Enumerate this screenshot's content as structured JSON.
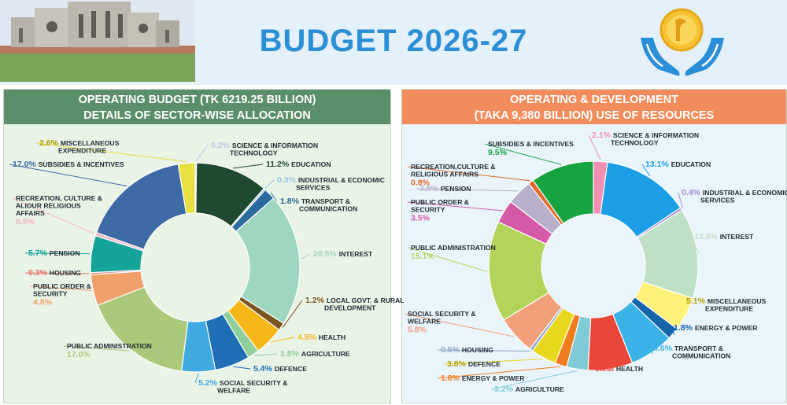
{
  "header": {
    "title": "BUDGET 2026-27"
  },
  "colors": {
    "header_bg": "#e4f0fa",
    "title": "#2b8fd6",
    "left_banner": "#5a8f6a",
    "right_banner": "#f28c5c"
  },
  "chart_data": [
    {
      "type": "pie",
      "donut": true,
      "title": "OPERATING BUDGET (TK 6219.25 BILLION)",
      "subtitle": "DETAILS OF SECTOR-WISE ALLOCATION",
      "unit": "%",
      "slices": [
        {
          "label": "SCIENCE & INFORMATION TECHNOLOGY",
          "value": 0.2,
          "text": "0.2%",
          "color": "#b9c9e6"
        },
        {
          "label": "EDUCATION",
          "value": 11.2,
          "text": "11.2%",
          "color": "#1f4a2f"
        },
        {
          "label": "INDUSTRIAL & ECONOMIC SERVICES",
          "value": 0.3,
          "text": "0.3%",
          "color": "#9ec3e0"
        },
        {
          "label": "TRANSPORT & COMMUNICATION",
          "value": 1.8,
          "text": "1.8%",
          "color": "#2a6a9c"
        },
        {
          "label": "INTEREST",
          "value": 20.5,
          "text": "20.5%",
          "color": "#9fd6c0"
        },
        {
          "label": "LOCAL GOVT. & RURAL DEVELOPMENT",
          "value": 1.2,
          "text": "1.2%",
          "color": "#7a5520"
        },
        {
          "label": "HEALTH",
          "value": 4.5,
          "text": "4.5%",
          "color": "#f5b719"
        },
        {
          "label": "AGRICULTURE",
          "value": 1.8,
          "text": "1.8%",
          "color": "#8fcf9a"
        },
        {
          "label": "DEFENCE",
          "value": 5.4,
          "text": "5.4%",
          "color": "#1e6fb5"
        },
        {
          "label": "SOCIAL SECURITY & WELFARE",
          "value": 5.2,
          "text": "5.2%",
          "color": "#3fa9e0"
        },
        {
          "label": "PUBLIC ADMINISTRATION",
          "value": 17.0,
          "text": "17.0%",
          "color": "#aac97a"
        },
        {
          "label": "PUBLIC ORDER & SECURITY",
          "value": 4.8,
          "text": "4.8%",
          "color": "#f2a06b"
        },
        {
          "label": "HOUSING",
          "value": 0.3,
          "text": "0.3%",
          "color": "#e8746a"
        },
        {
          "label": "PENSION",
          "value": 5.7,
          "text": "5.7%",
          "color": "#16a39a"
        },
        {
          "label": "RECREATION, CULTURE & ALIOUR RELIGIOUS AFFAIRS",
          "value": 0.5,
          "text": "0.5%",
          "color": "#f4b6c0"
        },
        {
          "label": "SUBSIDIES & INCENTIVES",
          "value": 17.0,
          "text": "17.0%",
          "color": "#3e6aa6"
        },
        {
          "label": "MISCELLANEOUS EXPENDITURE",
          "value": 2.6,
          "text": "2.6%",
          "color": "#e8e040"
        }
      ]
    },
    {
      "type": "pie",
      "donut": true,
      "title": "OPERATING & DEVELOPMENT",
      "subtitle": "(TAKA 9,380 BILLION) USE OF RESOURCES",
      "unit": "%",
      "slices": [
        {
          "label": "SCIENCE & INFORMATION TECHNOLOGY",
          "value": 2.1,
          "text": "2.1%",
          "color": "#f08fb3"
        },
        {
          "label": "EDUCATION",
          "value": 13.1,
          "text": "13.1%",
          "color": "#1b9ee6"
        },
        {
          "label": "INDUSTRIAL & ECONOMIC SERVICES",
          "value": 0.4,
          "text": "0.4%",
          "color": "#a58bd0"
        },
        {
          "label": "INTEREST",
          "value": 13.6,
          "text": "13.6%",
          "color": "#bfe0c6"
        },
        {
          "label": "MISCELLANEOUS EXPENDITURE",
          "value": 5.1,
          "text": "5.1%",
          "color": "#fff27a"
        },
        {
          "label": "ENERGY & POWER",
          "value": 1.8,
          "text": "1.8%",
          "color": "#1565a8"
        },
        {
          "label": "TRANSPORT & COMMUNICATION",
          "value": 6.6,
          "text": "6.6%",
          "color": "#3bb3e8"
        },
        {
          "label": "HEALTH",
          "value": 6.7,
          "text": "6.7%",
          "color": "#e8473a"
        },
        {
          "label": "AGRICULTURE",
          "value": 3.2,
          "text": "3.2%",
          "color": "#7fcbd8"
        },
        {
          "label": "ENERGY & POWER",
          "value": 1.8,
          "text": "1.8%",
          "color": "#f07c1e"
        },
        {
          "label": "DEFENCE",
          "value": 3.8,
          "text": "3.8%",
          "color": "#e7d81e"
        },
        {
          "label": "HOUSING",
          "value": 0.5,
          "text": "0.5%",
          "color": "#8fa8c8"
        },
        {
          "label": "SOCIAL SECURITY & WELFARE",
          "value": 5.8,
          "text": "5.8%",
          "color": "#f2a07a"
        },
        {
          "label": "PUBLIC ADMINISTRATION",
          "value": 15.1,
          "text": "15.1%",
          "color": "#b3d45a"
        },
        {
          "label": "PUBLIC ORDER & SECURITY",
          "value": 3.5,
          "text": "3.5%",
          "color": "#d45aa8"
        },
        {
          "label": "PENSION",
          "value": 3.8,
          "text": "3.8%",
          "color": "#b8b0c8"
        },
        {
          "label": "RECREATION,CULTURE & RELIGIOUS AFFAIRS",
          "value": 0.8,
          "text": "0.8%",
          "color": "#e06a2a"
        },
        {
          "label": "SUBSIDIES & INCENTIVES",
          "value": 9.5,
          "text": "9.5%",
          "color": "#17a340"
        }
      ]
    }
  ]
}
